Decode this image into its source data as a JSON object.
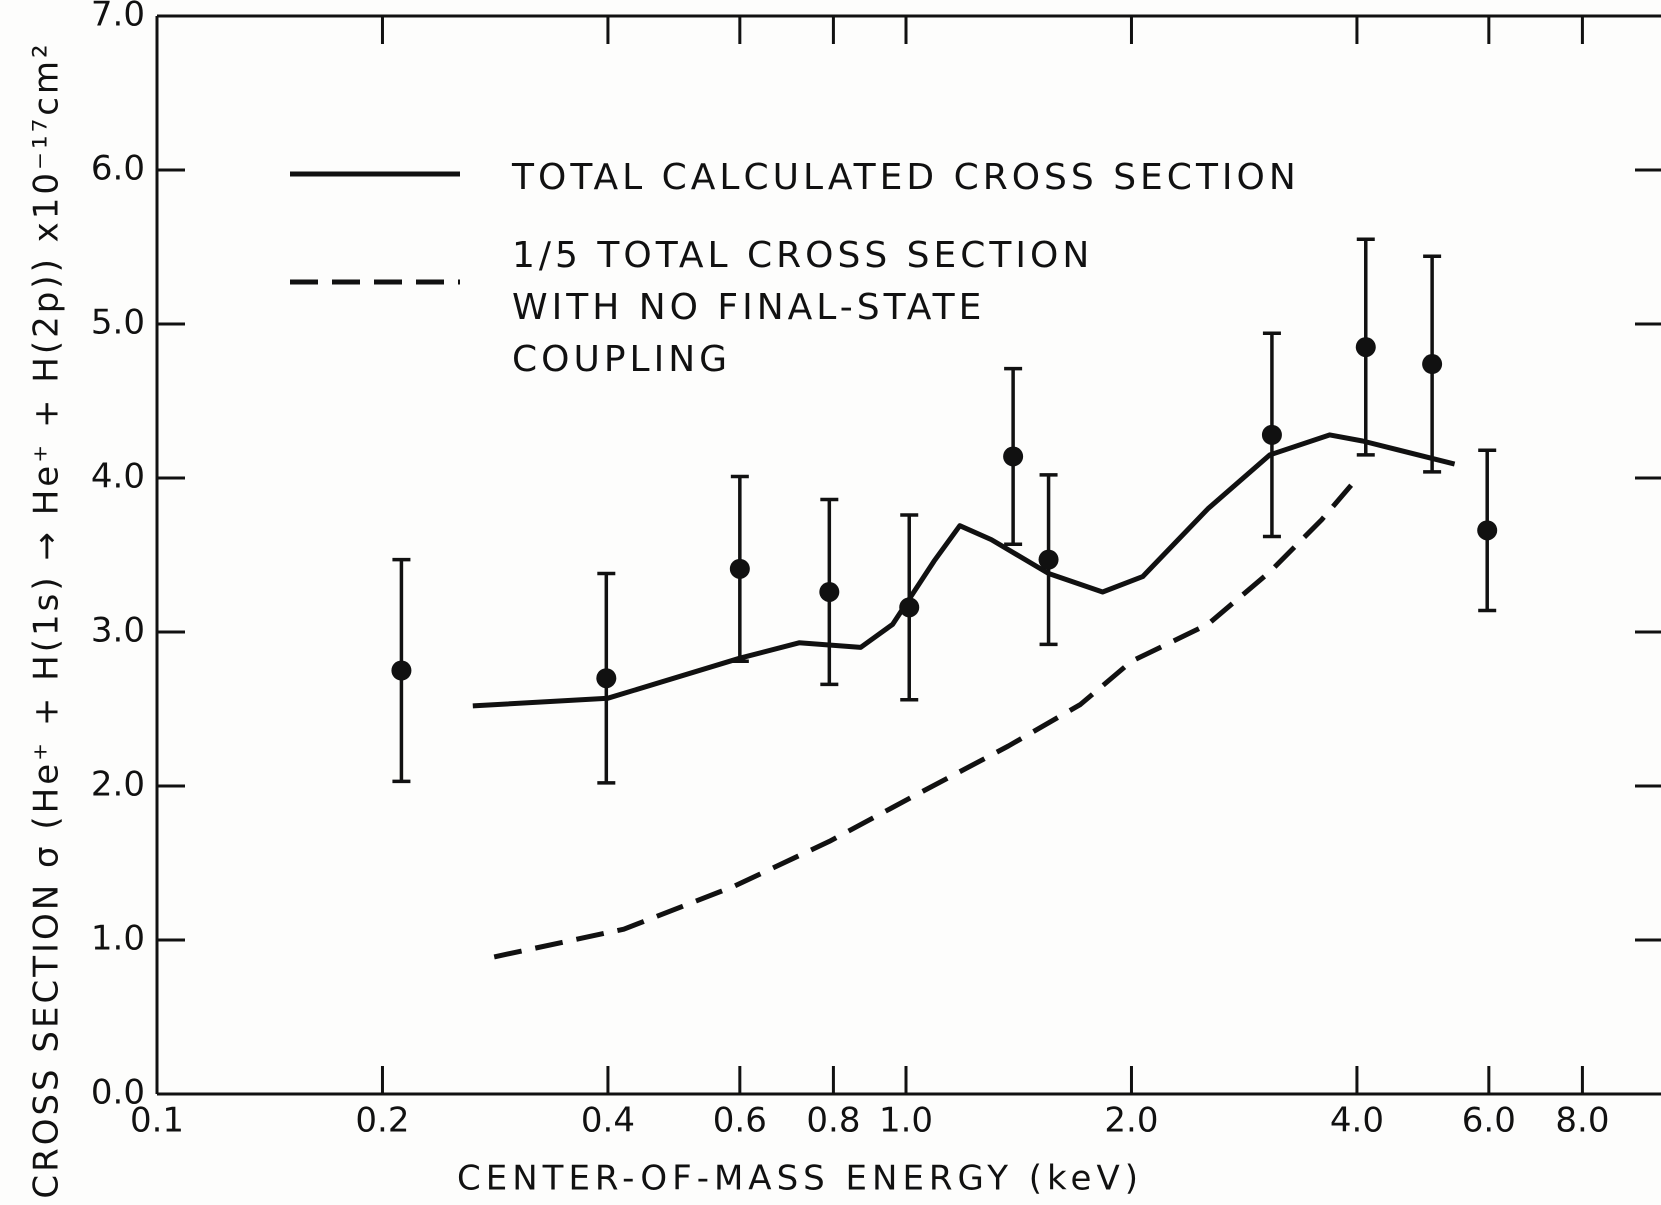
{
  "chart_data": {
    "type": "line",
    "xlabel": "CENTER-OF-MASS ENERGY (keV)",
    "ylabel": "CROSS SECTION   σ (He⁺ + H(1s) → He⁺ + H(2p)) x10⁻¹⁷cm²",
    "xscale": "log",
    "xlim": [
      0.1,
      10
    ],
    "ylim": [
      0,
      7
    ],
    "xticks": [
      0.1,
      0.2,
      0.4,
      0.6,
      0.8,
      {
        "value": 1,
        "label": "1.0"
      },
      {
        "value": 2,
        "label": "2.0"
      },
      {
        "value": 4,
        "label": "4.0"
      },
      {
        "value": 6,
        "label": "6.0"
      },
      {
        "value": 8,
        "label": "8.0"
      }
    ],
    "yticks": [
      {
        "value": 0,
        "label": "0.0"
      },
      {
        "value": 1,
        "label": "1.0"
      },
      {
        "value": 2,
        "label": "2.0"
      },
      {
        "value": 3,
        "label": "3.0"
      },
      {
        "value": 4,
        "label": "4.0"
      },
      {
        "value": 5,
        "label": "5.0"
      },
      {
        "value": 6,
        "label": "6.0"
      },
      {
        "value": 7,
        "label": "7.0"
      }
    ],
    "grid": false,
    "series": [
      {
        "name": "TOTAL CALCULATED CROSS SECTION",
        "color": "#111111",
        "dash": "solid",
        "x": [
          0.264,
          0.4,
          0.6,
          0.72,
          0.87,
          0.96,
          1.09,
          1.18,
          1.3,
          1.55,
          1.83,
          2.07,
          2.53,
          3.06,
          3.68,
          4.07,
          5.4
        ],
        "values": [
          2.52,
          2.57,
          2.83,
          2.93,
          2.9,
          3.05,
          3.46,
          3.69,
          3.6,
          3.38,
          3.26,
          3.36,
          3.8,
          4.15,
          4.28,
          4.24,
          4.09
        ]
      },
      {
        "name": "1/5 TOTAL CROSS SECTION WITH NO FINAL-STATE COUPLING",
        "color": "#111111",
        "dash": "dashed",
        "x": [
          0.282,
          0.42,
          0.59,
          0.79,
          1.02,
          1.37,
          1.71,
          2.0,
          2.53,
          3.06,
          3.59,
          4.02
        ],
        "values": [
          0.89,
          1.07,
          1.35,
          1.64,
          1.93,
          2.26,
          2.53,
          2.81,
          3.05,
          3.39,
          3.73,
          4.01
        ]
      }
    ],
    "points": {
      "color": "#111111",
      "x": [
        0.212,
        0.398,
        0.6,
        0.79,
        1.01,
        1.39,
        1.55,
        3.08,
        4.11,
        5.04,
        5.97
      ],
      "values": [
        2.75,
        2.7,
        3.41,
        3.26,
        3.16,
        4.14,
        3.47,
        4.28,
        4.85,
        4.74,
        3.66
      ],
      "errors": [
        0.72,
        0.68,
        0.6,
        0.6,
        0.6,
        0.57,
        0.55,
        0.66,
        0.7,
        0.7,
        0.52
      ]
    }
  }
}
